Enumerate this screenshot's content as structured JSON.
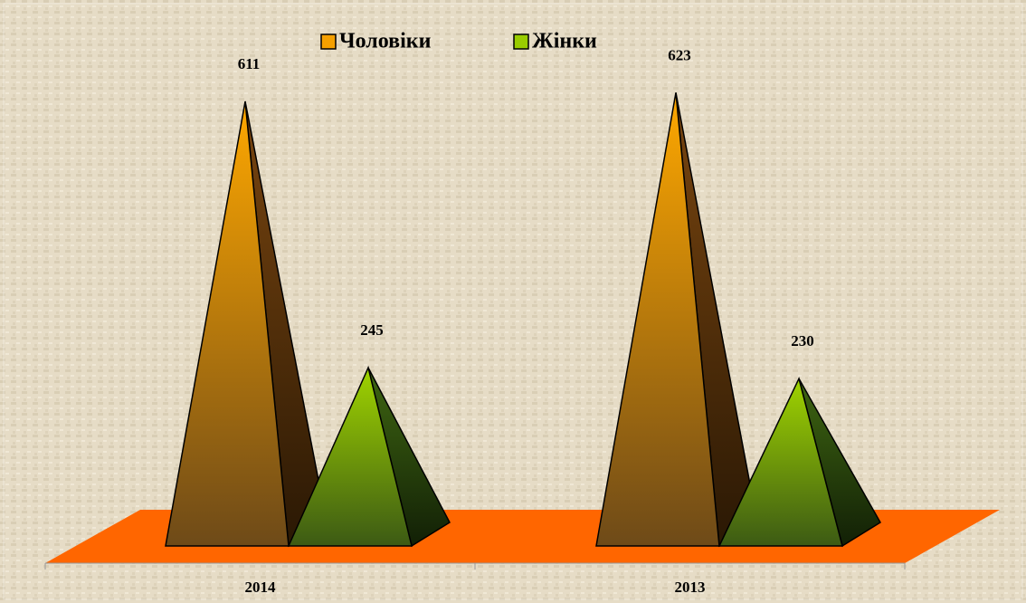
{
  "chart_data": {
    "type": "pyramid3d",
    "categories": [
      "2014",
      "2013"
    ],
    "series": [
      {
        "name": "Чоловіки",
        "color": "#f5a000",
        "values": [
          611,
          623
        ]
      },
      {
        "name": "Жінки",
        "color": "#99cc00",
        "values": [
          245,
          230
        ]
      }
    ],
    "floor_color": "#ff6600"
  }
}
